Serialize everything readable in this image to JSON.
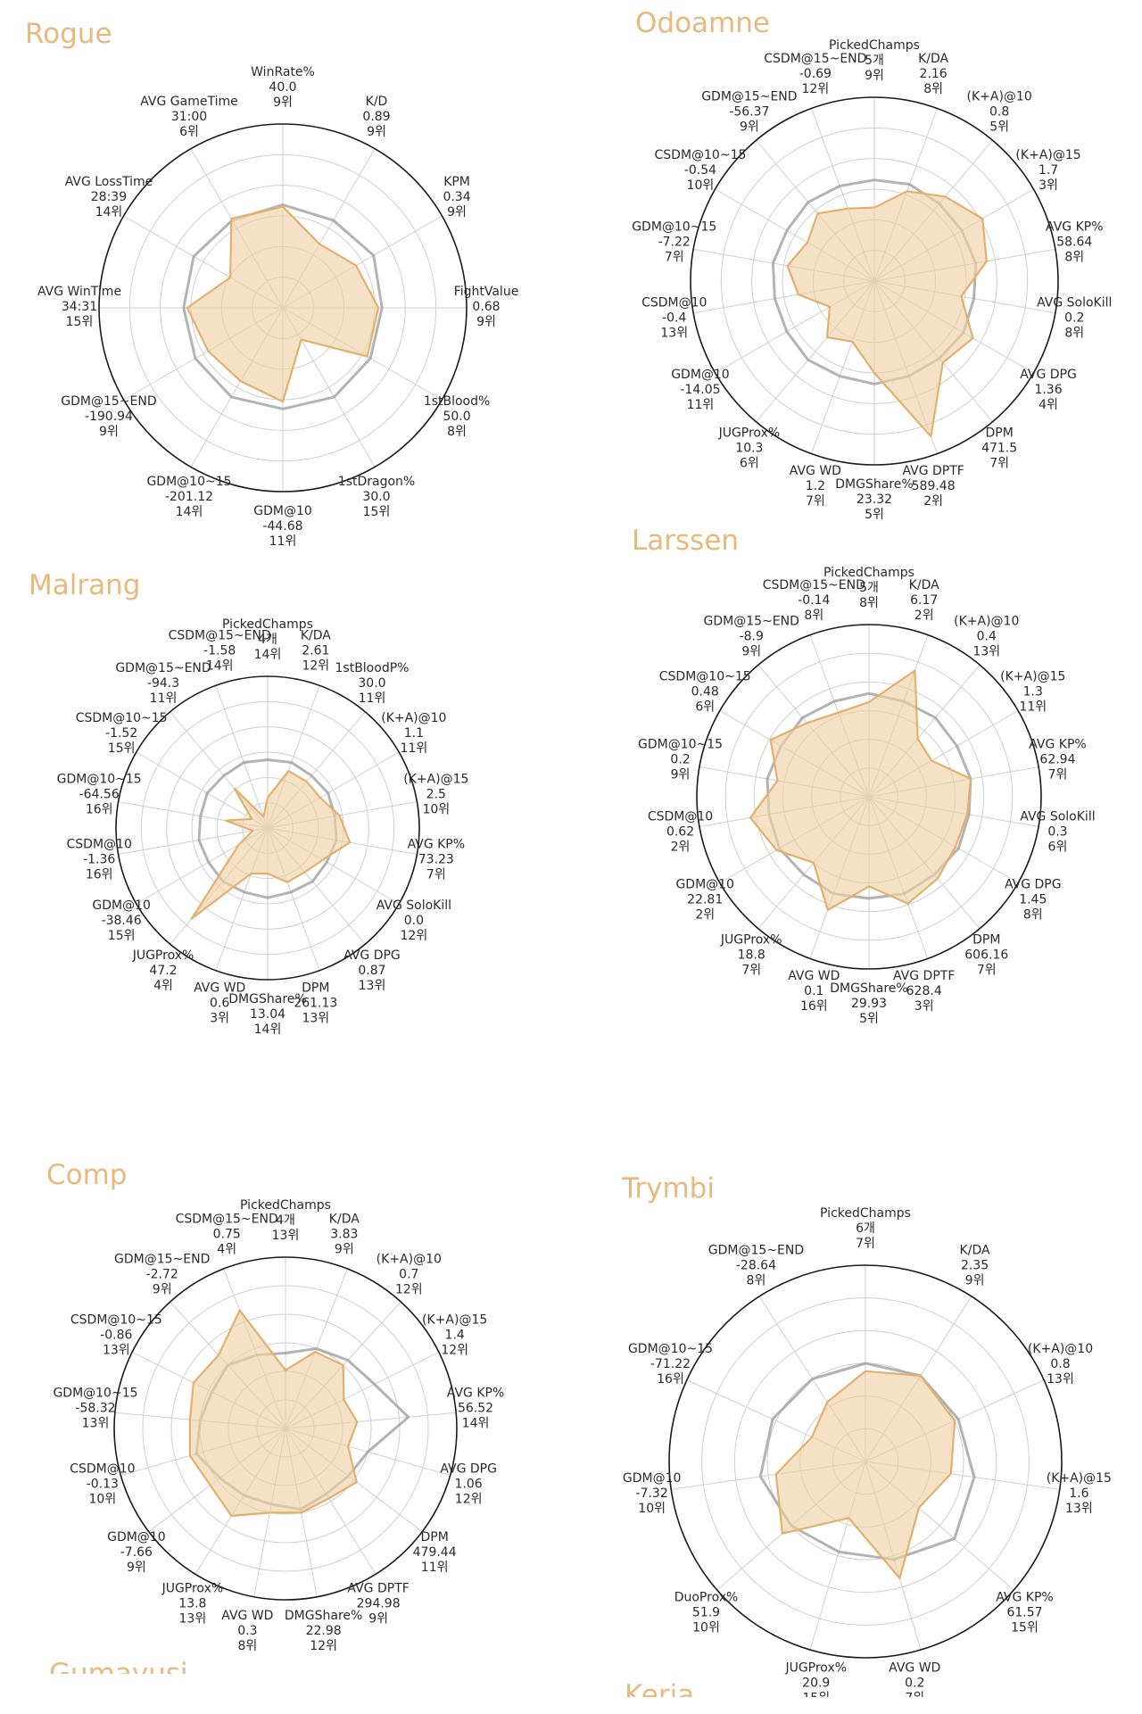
{
  "colors": {
    "player": "#e3b06d",
    "player_fill": "#f0d1a8",
    "average": "#9a9a9a",
    "grid": "#cfcfcf",
    "outer": "#1a1a1a",
    "name": "#e8b97e"
  },
  "chart_data": [
    {
      "type": "radar",
      "title": "Rogue",
      "rlim": [
        0,
        1
      ],
      "axes": [
        {
          "label": "WinRate%",
          "value": "40.0",
          "rank": "9위"
        },
        {
          "label": "K/D",
          "value": "0.89",
          "rank": "9위"
        },
        {
          "label": "KPM",
          "value": "0.34",
          "rank": "9위"
        },
        {
          "label": "FightValue",
          "value": "0.68",
          "rank": "9위"
        },
        {
          "label": "1stBlood%",
          "value": "50.0",
          "rank": "8위"
        },
        {
          "label": "1stDragon%",
          "value": "30.0",
          "rank": "15위"
        },
        {
          "label": "GDM@10",
          "value": "-44.68",
          "rank": "11위"
        },
        {
          "label": "GDM@10~15",
          "value": "-201.12",
          "rank": "14위"
        },
        {
          "label": "GDM@15~END",
          "value": "-190.94",
          "rank": "9위"
        },
        {
          "label": "AVG WinTime",
          "value": "34:31",
          "rank": "15위"
        },
        {
          "label": "AVG LossTime",
          "value": "28:39",
          "rank": "14위"
        },
        {
          "label": "AVG GameTime",
          "value": "31:00",
          "rank": "6위"
        }
      ],
      "series": [
        {
          "values": [
            0.55,
            0.4,
            0.46,
            0.52,
            0.53,
            0.2,
            0.51,
            0.46,
            0.47,
            0.52,
            0.33,
            0.56
          ]
        },
        {
          "values": [
            0.56,
            0.55,
            0.57,
            0.54,
            0.55,
            0.56,
            0.55,
            0.56,
            0.55,
            0.54,
            0.56,
            0.55
          ]
        }
      ]
    },
    {
      "type": "radar",
      "title": "Odoamne",
      "rlim": [
        0,
        1
      ],
      "axes": [
        {
          "label": "PickedChamps",
          "value": "5개",
          "rank": "9위"
        },
        {
          "label": "K/DA",
          "value": "2.16",
          "rank": "8위"
        },
        {
          "label": "(K+A)@10",
          "value": "0.8",
          "rank": "5위"
        },
        {
          "label": "(K+A)@15",
          "value": "1.7",
          "rank": "3위"
        },
        {
          "label": "AVG KP%",
          "value": "58.64",
          "rank": "8위"
        },
        {
          "label": "AVG SoloKill",
          "value": "0.2",
          "rank": "8위"
        },
        {
          "label": "AVG DPG",
          "value": "1.36",
          "rank": "4위"
        },
        {
          "label": "DPM",
          "value": "471.5",
          "rank": "7위"
        },
        {
          "label": "AVG DPTF",
          "value": "589.48",
          "rank": "2위"
        },
        {
          "label": "DMGShare%",
          "value": "23.32",
          "rank": "5위"
        },
        {
          "label": "AVG WD",
          "value": "1.2",
          "rank": "7위"
        },
        {
          "label": "JUGProx%",
          "value": "10.3",
          "rank": "6위"
        },
        {
          "label": "GDM@10",
          "value": "-14.05",
          "rank": "11위"
        },
        {
          "label": "CSDM@10",
          "value": "-0.4",
          "rank": "13위"
        },
        {
          "label": "GDM@10~15",
          "value": "-7.22",
          "rank": "7위"
        },
        {
          "label": "CSDM@10~15",
          "value": "-0.54",
          "rank": "10위"
        },
        {
          "label": "GDM@15~END",
          "value": "-56.37",
          "rank": "9위"
        },
        {
          "label": "CSDM@15~END",
          "value": "-0.69",
          "rank": "12위"
        }
      ],
      "series": [
        {
          "values": [
            0.4,
            0.52,
            0.6,
            0.68,
            0.62,
            0.48,
            0.62,
            0.58,
            0.9,
            0.5,
            0.35,
            0.4,
            0.28,
            0.42,
            0.48,
            0.42,
            0.48,
            0.42
          ]
        },
        {
          "values": [
            0.55,
            0.56,
            0.55,
            0.55,
            0.56,
            0.55,
            0.56,
            0.55,
            0.55,
            0.56,
            0.55,
            0.56,
            0.55,
            0.55,
            0.56,
            0.55,
            0.56,
            0.55
          ]
        }
      ]
    },
    {
      "type": "radar",
      "title": "Malrang",
      "rlim": [
        0,
        1
      ],
      "axes": [
        {
          "label": "PickedChamps",
          "value": "4개",
          "rank": "14위"
        },
        {
          "label": "K/DA",
          "value": "2.61",
          "rank": "12위"
        },
        {
          "label": "1stBloodP%",
          "value": "30.0",
          "rank": "11위"
        },
        {
          "label": "(K+A)@10",
          "value": "1.1",
          "rank": "11위"
        },
        {
          "label": "(K+A)@15",
          "value": "2.5",
          "rank": "10위"
        },
        {
          "label": "AVG KP%",
          "value": "73.23",
          "rank": "7위"
        },
        {
          "label": "AVG SoloKill",
          "value": "0.0",
          "rank": "12위"
        },
        {
          "label": "AVG DPG",
          "value": "0.87",
          "rank": "13위"
        },
        {
          "label": "DPM",
          "value": "261.13",
          "rank": "13위"
        },
        {
          "label": "DMGShare%",
          "value": "13.04",
          "rank": "14위"
        },
        {
          "label": "AVG WD",
          "value": "0.6",
          "rank": "3위"
        },
        {
          "label": "JUGProx%",
          "value": "47.2",
          "rank": "4위"
        },
        {
          "label": "GDM@10",
          "value": "-38.46",
          "rank": "15위"
        },
        {
          "label": "CSDM@10",
          "value": "-1.36",
          "rank": "16위"
        },
        {
          "label": "GDM@10~15",
          "value": "-64.56",
          "rank": "16위"
        },
        {
          "label": "CSDM@10~15",
          "value": "-1.52",
          "rank": "15위"
        },
        {
          "label": "GDM@15~END",
          "value": "-94.3",
          "rank": "11위"
        },
        {
          "label": "CSDM@15~END",
          "value": "-1.58",
          "rank": "14위"
        }
      ],
      "series": [
        {
          "values": [
            0.2,
            0.4,
            0.4,
            0.4,
            0.48,
            0.55,
            0.42,
            0.38,
            0.38,
            0.3,
            0.32,
            0.78,
            0.22,
            0.1,
            0.28,
            0.12,
            0.34,
            0.08
          ]
        },
        {
          "values": [
            0.45,
            0.46,
            0.45,
            0.46,
            0.45,
            0.46,
            0.45,
            0.46,
            0.45,
            0.46,
            0.45,
            0.46,
            0.45,
            0.46,
            0.45,
            0.46,
            0.45,
            0.46
          ]
        }
      ]
    },
    {
      "type": "radar",
      "title": "Larssen",
      "rlim": [
        0,
        1
      ],
      "axes": [
        {
          "label": "PickedChamps",
          "value": "5개",
          "rank": "8위"
        },
        {
          "label": "K/DA",
          "value": "6.17",
          "rank": "2위"
        },
        {
          "label": "(K+A)@10",
          "value": "0.4",
          "rank": "13위"
        },
        {
          "label": "(K+A)@15",
          "value": "1.3",
          "rank": "11위"
        },
        {
          "label": "AVG KP%",
          "value": "62.94",
          "rank": "7위"
        },
        {
          "label": "AVG SoloKill",
          "value": "0.3",
          "rank": "6위"
        },
        {
          "label": "AVG DPG",
          "value": "1.45",
          "rank": "8위"
        },
        {
          "label": "DPM",
          "value": "606.16",
          "rank": "7위"
        },
        {
          "label": "AVG DPTF",
          "value": "628.4",
          "rank": "3위"
        },
        {
          "label": "DMGShare%",
          "value": "29.93",
          "rank": "5위"
        },
        {
          "label": "AVG WD",
          "value": "0.1",
          "rank": "16위"
        },
        {
          "label": "JUGProx%",
          "value": "18.8",
          "rank": "7위"
        },
        {
          "label": "GDM@10",
          "value": "22.81",
          "rank": "2위"
        },
        {
          "label": "CSDM@10",
          "value": "0.62",
          "rank": "2위"
        },
        {
          "label": "GDM@10~15",
          "value": "0.2",
          "rank": "9위"
        },
        {
          "label": "CSDM@10~15",
          "value": "0.48",
          "rank": "6위"
        },
        {
          "label": "GDM@15~END",
          "value": "-8.9",
          "rank": "9위"
        },
        {
          "label": "CSDM@15~END",
          "value": "-0.14",
          "rank": "8위"
        }
      ],
      "series": [
        {
          "values": [
            0.55,
            0.78,
            0.44,
            0.42,
            0.6,
            0.58,
            0.58,
            0.62,
            0.66,
            0.52,
            0.7,
            0.5,
            0.62,
            0.7,
            0.54,
            0.66,
            0.56,
            0.52
          ]
        },
        {
          "values": [
            0.6,
            0.59,
            0.6,
            0.59,
            0.6,
            0.59,
            0.6,
            0.59,
            0.6,
            0.59,
            0.6,
            0.59,
            0.6,
            0.59,
            0.6,
            0.59,
            0.6,
            0.59
          ]
        }
      ]
    },
    {
      "type": "radar",
      "title": "Comp",
      "rlim": [
        0,
        1
      ],
      "axes": [
        {
          "label": "PickedChamps",
          "value": "4개",
          "rank": "13위"
        },
        {
          "label": "K/DA",
          "value": "3.83",
          "rank": "9위"
        },
        {
          "label": "(K+A)@10",
          "value": "0.7",
          "rank": "12위"
        },
        {
          "label": "(K+A)@15",
          "value": "1.4",
          "rank": "12위"
        },
        {
          "label": "AVG KP%",
          "value": "56.52",
          "rank": "14위"
        },
        {
          "label": "AVG DPG",
          "value": "1.06",
          "rank": "12위"
        },
        {
          "label": "DPM",
          "value": "479.44",
          "rank": "11위"
        },
        {
          "label": "AVG DPTF",
          "value": "294.98",
          "rank": "9위"
        },
        {
          "label": "DMGShare%",
          "value": "22.98",
          "rank": "12위"
        },
        {
          "label": "AVG WD",
          "value": "0.3",
          "rank": "8위"
        },
        {
          "label": "JUGProx%",
          "value": "13.8",
          "rank": "13위"
        },
        {
          "label": "GDM@10",
          "value": "-7.66",
          "rank": "9위"
        },
        {
          "label": "CSDM@10",
          "value": "-0.13",
          "rank": "10위"
        },
        {
          "label": "GDM@10~15",
          "value": "-58.32",
          "rank": "13위"
        },
        {
          "label": "CSDM@10~15",
          "value": "-0.86",
          "rank": "13위"
        },
        {
          "label": "GDM@15~END",
          "value": "-2.72",
          "rank": "9위"
        },
        {
          "label": "CSDM@15~END",
          "value": "0.75",
          "rank": "4위"
        }
      ],
      "series": [
        {
          "values": [
            0.34,
            0.48,
            0.5,
            0.38,
            0.42,
            0.38,
            0.52,
            0.48,
            0.5,
            0.5,
            0.6,
            0.55,
            0.58,
            0.56,
            0.6,
            0.58,
            0.74
          ]
        },
        {
          "values": [
            0.44,
            0.5,
            0.54,
            0.58,
            0.72,
            0.5,
            0.46,
            0.45,
            0.48,
            0.45,
            0.46,
            0.48,
            0.54,
            0.5,
            0.48,
            0.5,
            0.46
          ]
        }
      ]
    },
    {
      "type": "radar",
      "title": "Trymbi",
      "rlim": [
        0,
        1
      ],
      "axes": [
        {
          "label": "PickedChamps",
          "value": "6개",
          "rank": "7위"
        },
        {
          "label": "K/DA",
          "value": "2.35",
          "rank": "9위"
        },
        {
          "label": "(K+A)@10",
          "value": "0.8",
          "rank": "13위"
        },
        {
          "label": "(K+A)@15",
          "value": "1.6",
          "rank": "13위"
        },
        {
          "label": "AVG KP%",
          "value": "61.57",
          "rank": "15위"
        },
        {
          "label": "AVG WD",
          "value": "0.2",
          "rank": "7위"
        },
        {
          "label": "JUGProx%",
          "value": "20.9",
          "rank": "15위"
        },
        {
          "label": "DuoProx%",
          "value": "51.9",
          "rank": "10위"
        },
        {
          "label": "GDM@10",
          "value": "-7.32",
          "rank": "10위"
        },
        {
          "label": "GDM@10~15",
          "value": "-71.22",
          "rank": "16위"
        },
        {
          "label": "GDM@15~END",
          "value": "-28.64",
          "rank": "8위"
        }
      ],
      "series": [
        {
          "values": [
            0.46,
            0.52,
            0.5,
            0.44,
            0.36,
            0.62,
            0.3,
            0.56,
            0.46,
            0.3,
            0.36
          ]
        },
        {
          "values": [
            0.5,
            0.52,
            0.52,
            0.56,
            0.6,
            0.52,
            0.48,
            0.5,
            0.54,
            0.52,
            0.5
          ]
        }
      ]
    }
  ],
  "partial_titles": [
    "Gumayusi",
    "Keria"
  ]
}
